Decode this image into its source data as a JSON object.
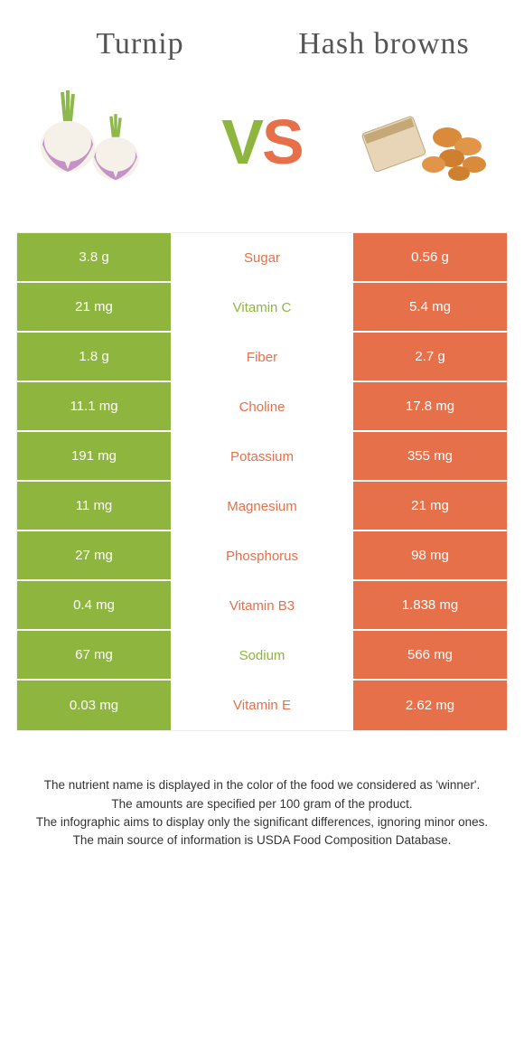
{
  "foodA": {
    "name": "Turnip"
  },
  "foodB": {
    "name": "Hash browns"
  },
  "vs": {
    "v": "V",
    "s": "S"
  },
  "colors": {
    "left": "#8eb63e",
    "right": "#e6704a",
    "bg": "#ffffff"
  },
  "rows": [
    {
      "left": "3.8 g",
      "nutrient": "Sugar",
      "right": "0.56 g",
      "winner": "right"
    },
    {
      "left": "21 mg",
      "nutrient": "Vitamin C",
      "right": "5.4 mg",
      "winner": "left"
    },
    {
      "left": "1.8 g",
      "nutrient": "Fiber",
      "right": "2.7 g",
      "winner": "right"
    },
    {
      "left": "11.1 mg",
      "nutrient": "Choline",
      "right": "17.8 mg",
      "winner": "right"
    },
    {
      "left": "191 mg",
      "nutrient": "Potassium",
      "right": "355 mg",
      "winner": "right"
    },
    {
      "left": "11 mg",
      "nutrient": "Magnesium",
      "right": "21 mg",
      "winner": "right"
    },
    {
      "left": "27 mg",
      "nutrient": "Phosphorus",
      "right": "98 mg",
      "winner": "right"
    },
    {
      "left": "0.4 mg",
      "nutrient": "Vitamin B3",
      "right": "1.838 mg",
      "winner": "right"
    },
    {
      "left": "67 mg",
      "nutrient": "Sodium",
      "right": "566 mg",
      "winner": "left"
    },
    {
      "left": "0.03 mg",
      "nutrient": "Vitamin E",
      "right": "2.62 mg",
      "winner": "right"
    }
  ],
  "footer": {
    "l1": "The nutrient name is displayed in the color of the food we considered as 'winner'.",
    "l2": "The amounts are specified per 100 gram of the product.",
    "l3": "The infographic aims to display only the significant differences, ignoring minor ones.",
    "l4": "The main source of information is USDA Food Composition Database."
  }
}
